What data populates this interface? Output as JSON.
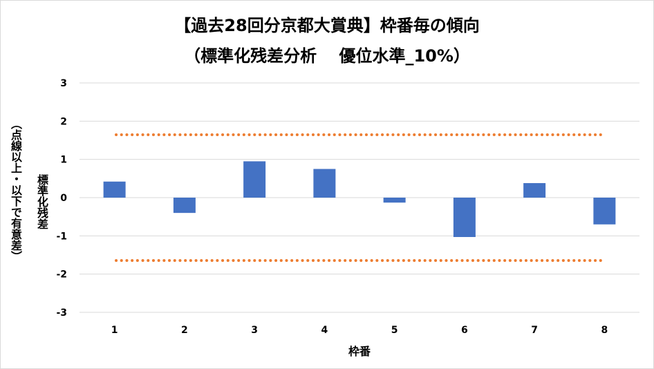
{
  "chart_data": {
    "type": "bar",
    "title": "【過去28回分京都大賞典】枠番毎の傾向",
    "subtitle": "（標準化残差分析　 優位水準_10%）",
    "xlabel": "枠番",
    "ylabel_line1": "（点線以上・以下で有意差）",
    "ylabel_line2": "標準化残差",
    "categories": [
      "1",
      "2",
      "3",
      "4",
      "5",
      "6",
      "7",
      "8"
    ],
    "values": [
      0.42,
      -0.4,
      0.95,
      0.75,
      -0.13,
      -1.03,
      0.38,
      -0.7
    ],
    "ylim": [
      -3,
      3
    ],
    "yticks": [
      "3",
      "2",
      "1",
      "0",
      "-1",
      "-2",
      "-3"
    ],
    "threshold_lines": [
      1.645,
      -1.645
    ],
    "grid": true,
    "colors": {
      "bar": "#4472c4",
      "threshold": "#ed7d31",
      "grid": "#d9d9d9"
    }
  }
}
